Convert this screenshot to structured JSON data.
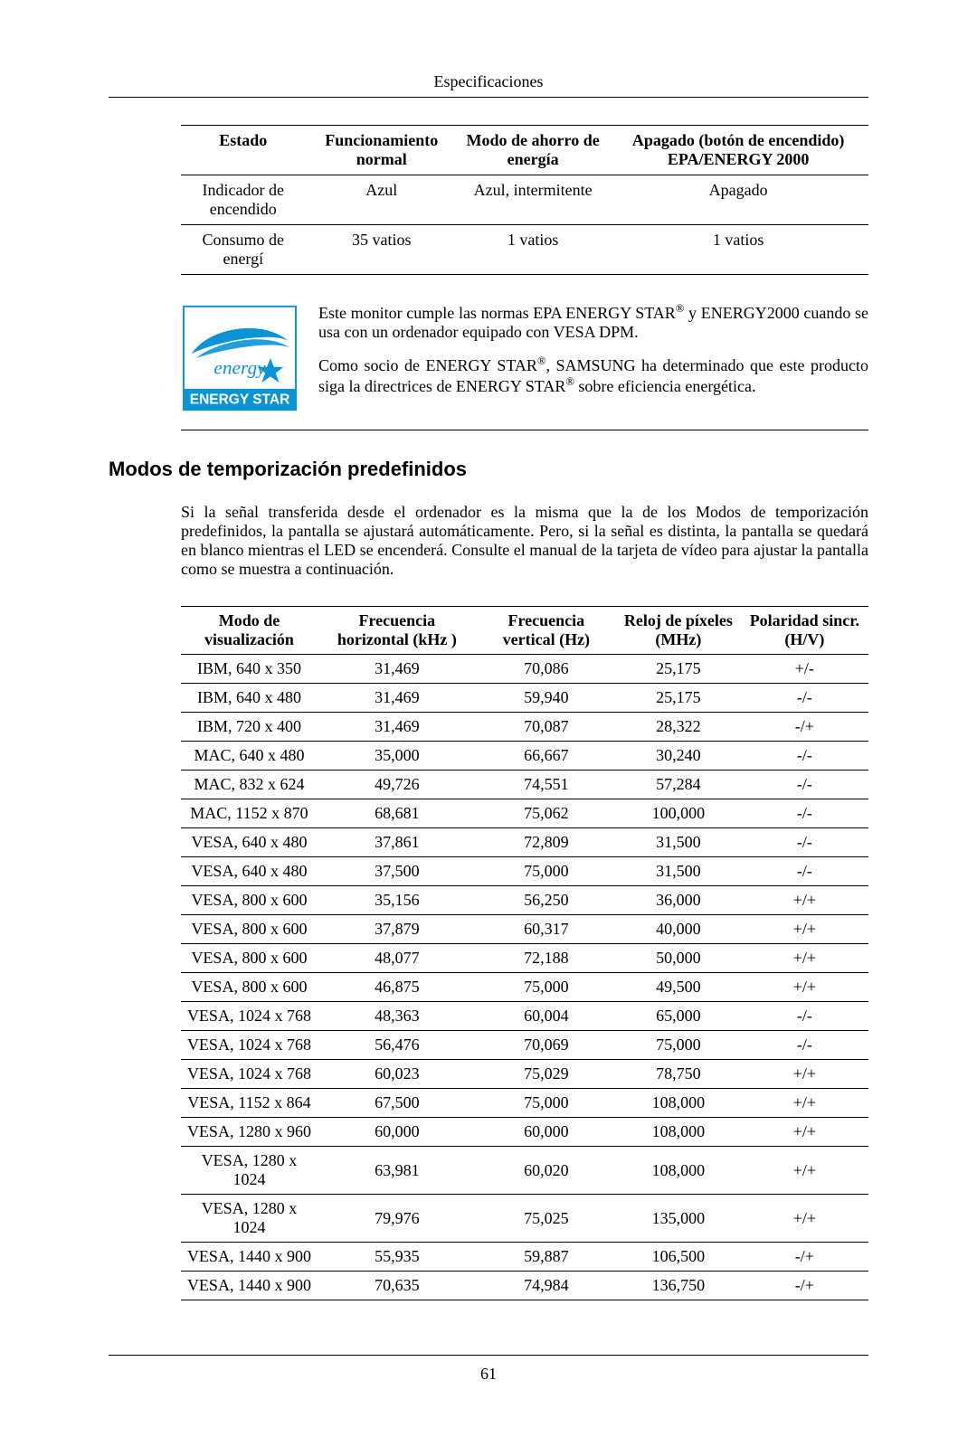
{
  "header": {
    "title": "Especificaciones"
  },
  "power_table": {
    "headers": [
      "Estado",
      "Funcionamiento normal",
      "Modo de ahorro de energía",
      "Apagado (botón de encendido) EPA/ENERGY 2000"
    ],
    "rows": [
      [
        "Indicador de encendido",
        "Azul",
        "Azul, intermitente",
        "Apagado"
      ],
      [
        "Consumo de energí",
        "35 vatios",
        "1 vatios",
        "1 vatios"
      ]
    ]
  },
  "energy_star": {
    "logo_script": "energy",
    "logo_bar": "ENERGY STAR",
    "para1_a": "Este monitor cumple las normas EPA ENERGY STAR",
    "para1_b": " y ENERGY2000 cuando se usa con un ordenador equipado con VESA DPM.",
    "para2_a": "Como socio de ENERGY STAR",
    "para2_b": ", SAMSUNG ha determinado que este producto siga la directrices de ENERGY STAR",
    "para2_c": " sobre eficiencia energética.",
    "reg": "®"
  },
  "section": {
    "title": "Modos de temporización predefinidos",
    "intro": "Si la señal transferida desde el ordenador es la misma que la de los Modos de temporización predefinidos, la pantalla se ajustará automáticamente. Pero, si la señal es distinta, la pantalla se quedará en blanco mientras el LED se encenderá. Consulte el manual de la tarjeta de vídeo para ajustar la pantalla como se muestra a continuación."
  },
  "timing_table": {
    "headers": [
      "Modo de visualización",
      "Frecuencia horizontal (kHz )",
      "Frecuencia vertical (Hz)",
      "Reloj de píxeles (MHz)",
      "Polaridad sincr. (H/V)"
    ],
    "rows": [
      [
        "IBM, 640 x 350",
        "31,469",
        "70,086",
        "25,175",
        "+/-"
      ],
      [
        "IBM, 640 x 480",
        "31,469",
        "59,940",
        "25,175",
        "-/-"
      ],
      [
        "IBM, 720 x 400",
        "31,469",
        "70,087",
        "28,322",
        "-/+"
      ],
      [
        "MAC, 640 x 480",
        "35,000",
        "66,667",
        "30,240",
        "-/-"
      ],
      [
        "MAC, 832 x 624",
        "49,726",
        "74,551",
        "57,284",
        "-/-"
      ],
      [
        "MAC, 1152 x 870",
        "68,681",
        "75,062",
        "100,000",
        "-/-"
      ],
      [
        "VESA, 640 x 480",
        "37,861",
        "72,809",
        "31,500",
        "-/-"
      ],
      [
        "VESA, 640 x 480",
        "37,500",
        "75,000",
        "31,500",
        "-/-"
      ],
      [
        "VESA, 800 x 600",
        "35,156",
        "56,250",
        "36,000",
        "+/+"
      ],
      [
        "VESA, 800 x 600",
        "37,879",
        "60,317",
        "40,000",
        "+/+"
      ],
      [
        "VESA, 800 x 600",
        "48,077",
        "72,188",
        "50,000",
        "+/+"
      ],
      [
        "VESA, 800 x 600",
        "46,875",
        "75,000",
        "49,500",
        "+/+"
      ],
      [
        "VESA, 1024 x 768",
        "48,363",
        "60,004",
        "65,000",
        "-/-"
      ],
      [
        "VESA, 1024 x 768",
        "56,476",
        "70,069",
        "75,000",
        "-/-"
      ],
      [
        "VESA, 1024 x 768",
        "60,023",
        "75,029",
        "78,750",
        "+/+"
      ],
      [
        "VESA, 1152 x 864",
        "67,500",
        "75,000",
        "108,000",
        "+/+"
      ],
      [
        "VESA, 1280 x 960",
        "60,000",
        "60,000",
        "108,000",
        "+/+"
      ],
      [
        "VESA, 1280 x 1024",
        "63,981",
        "60,020",
        "108,000",
        "+/+"
      ],
      [
        "VESA, 1280 x 1024",
        "79,976",
        "75,025",
        "135,000",
        "+/+"
      ],
      [
        "VESA, 1440 x 900",
        "55,935",
        "59,887",
        "106,500",
        "-/+"
      ],
      [
        "VESA, 1440 x 900",
        "70,635",
        "74,984",
        "136,750",
        "-/+"
      ]
    ]
  },
  "footer": {
    "page": "61"
  },
  "colors": {
    "logo_blue": "#0a94d6",
    "text": "#000000",
    "border": "#000000"
  }
}
